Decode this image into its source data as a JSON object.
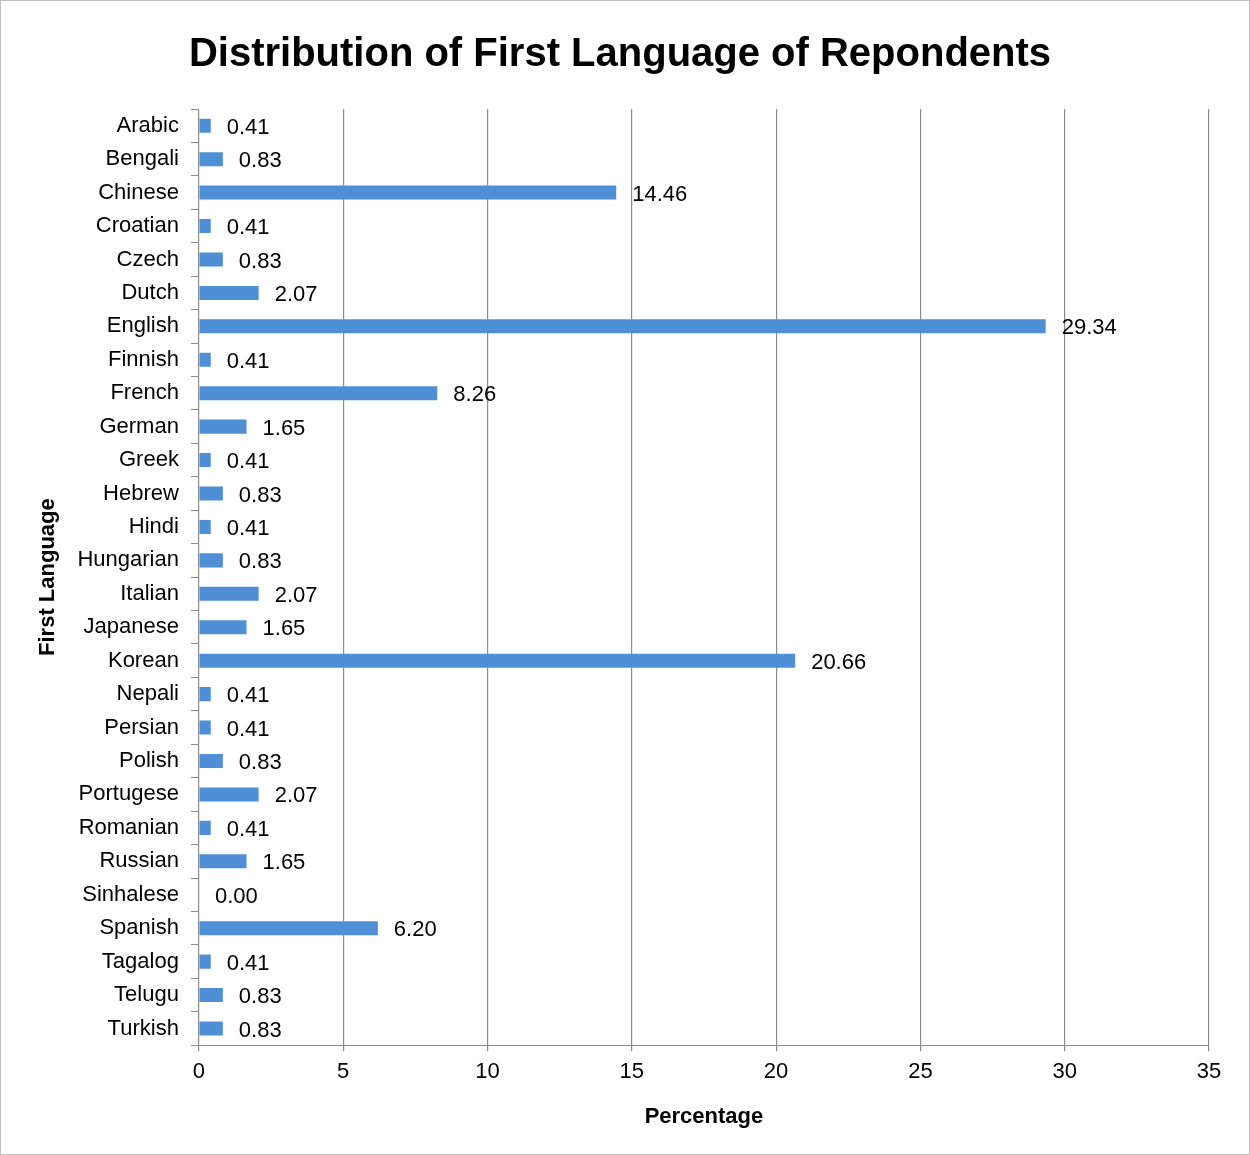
{
  "chart_data": {
    "type": "bar",
    "orientation": "horizontal",
    "title": "Distribution of First Language of Repondents",
    "xlabel": "Percentage",
    "ylabel": "First Language",
    "categories": [
      "Arabic",
      "Bengali",
      "Chinese",
      "Croatian",
      "Czech",
      "Dutch",
      "English",
      "Finnish",
      "French",
      "German",
      "Greek",
      "Hebrew",
      "Hindi",
      "Hungarian",
      "Italian",
      "Japanese",
      "Korean",
      "Nepali",
      "Persian",
      "Polish",
      "Portugese",
      "Romanian",
      "Russian",
      "Sinhalese",
      "Spanish",
      "Tagalog",
      "Telugu",
      "Turkish"
    ],
    "values": [
      0.41,
      0.83,
      14.46,
      0.41,
      0.83,
      2.07,
      29.34,
      0.41,
      8.26,
      1.65,
      0.41,
      0.83,
      0.41,
      0.83,
      2.07,
      1.65,
      20.66,
      0.41,
      0.41,
      0.83,
      2.07,
      0.41,
      1.65,
      0,
      6.2,
      0.41,
      0.83,
      0.83
    ],
    "value_labels": [
      "0.41",
      "0.83",
      "14.46",
      "0.41",
      "0.83",
      "2.07",
      "29.34",
      "0.41",
      "8.26",
      "1.65",
      "0.41",
      "0.83",
      "0.41",
      "0.83",
      "2.07",
      "1.65",
      "20.66",
      "0.41",
      "0.41",
      "0.83",
      "2.07",
      "0.41",
      "1.65",
      "0.00",
      "6.20",
      "0.41",
      "0.83",
      "0.83"
    ],
    "color": "#4f8fd6",
    "xlim": [
      0,
      35
    ],
    "xticks": [
      0,
      5,
      10,
      15,
      20,
      25,
      30,
      35
    ],
    "grid": "x"
  }
}
